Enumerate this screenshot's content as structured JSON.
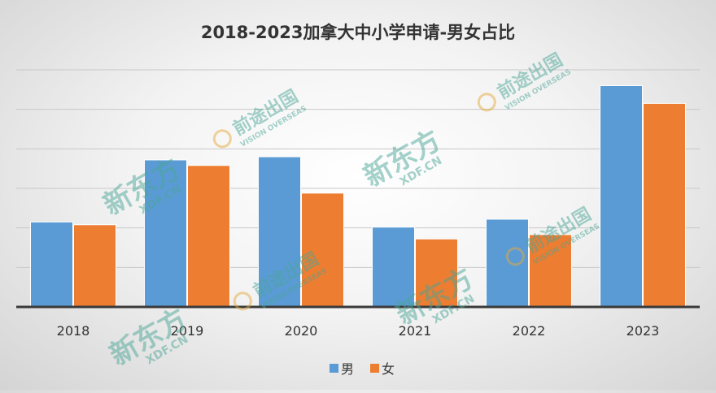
{
  "chart_data": {
    "type": "bar",
    "title": "2018-2023加拿大中小学申请-男女占比",
    "categories": [
      "2018",
      "2019",
      "2020",
      "2021",
      "2022",
      "2023"
    ],
    "series": [
      {
        "name": "男",
        "color": "#5b9bd5",
        "values": [
          2.15,
          3.72,
          3.8,
          2.02,
          2.22,
          5.6
        ]
      },
      {
        "name": "女",
        "color": "#ed7d31",
        "values": [
          2.08,
          3.58,
          2.88,
          1.72,
          1.83,
          5.15
        ]
      }
    ],
    "ylim": [
      0,
      6
    ],
    "y_gridlines": 6,
    "y_tick_labels_shown": false,
    "grid": true,
    "legend_position": "bottom",
    "xlabel": "",
    "ylabel": ""
  },
  "watermarks": {
    "brand_cn": "新东方",
    "brand_en": "XDF.CN",
    "vision_cn": "前途出国",
    "vision_en": "VISION OVERSEAS"
  }
}
